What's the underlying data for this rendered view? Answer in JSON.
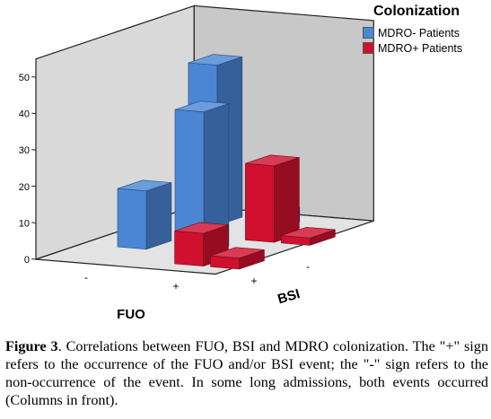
{
  "chart_data": {
    "type": "bar",
    "variant": "3d-clustered",
    "legend_title": "Colonization",
    "legend_position": "top-right",
    "series": [
      {
        "name": "MDRO- Patients",
        "color": "#4a86d4"
      },
      {
        "name": "MDRO+ Patients",
        "color": "#d0102e"
      }
    ],
    "x_axis": {
      "label": "FUO",
      "categories": [
        "-",
        "+"
      ]
    },
    "z_axis": {
      "label": "BSI",
      "categories": [
        "+",
        "-"
      ]
    },
    "y_axis": {
      "ticks": [
        "0",
        "10",
        "20",
        "30",
        "40",
        "50"
      ],
      "ylim": [
        0,
        55
      ]
    },
    "grid": false,
    "bars": [
      {
        "fuo": "-",
        "bsi": "-",
        "series": "MDRO- Patients",
        "value": 16
      },
      {
        "fuo": "-",
        "bsi": "-",
        "series": "MDRO+ Patients",
        "value": 9
      },
      {
        "fuo": "+",
        "bsi": "-",
        "series": "MDRO- Patients",
        "value": 39
      },
      {
        "fuo": "+",
        "bsi": "-",
        "series": "MDRO+ Patients",
        "value": 3
      },
      {
        "fuo": "-",
        "bsi": "+",
        "series": "MDRO- Patients",
        "value": 44
      },
      {
        "fuo": "-",
        "bsi": "+",
        "series": "MDRO+ Patients",
        "value": 21
      },
      {
        "fuo": "+",
        "bsi": "+",
        "series": "MDRO- Patients",
        "value": 4
      },
      {
        "fuo": "+",
        "bsi": "+",
        "series": "MDRO+ Patients",
        "value": 2
      }
    ]
  },
  "caption": {
    "label": "Figure 3",
    "text": ". Correlations between FUO, BSI and MDRO colonization. The \"+\" sign refers to the occurrence of the FUO and/or BSI event; the \"-\" sign refers to the non-occurrence of the event. In some long admissions, both events occurred (Columns in front)."
  }
}
